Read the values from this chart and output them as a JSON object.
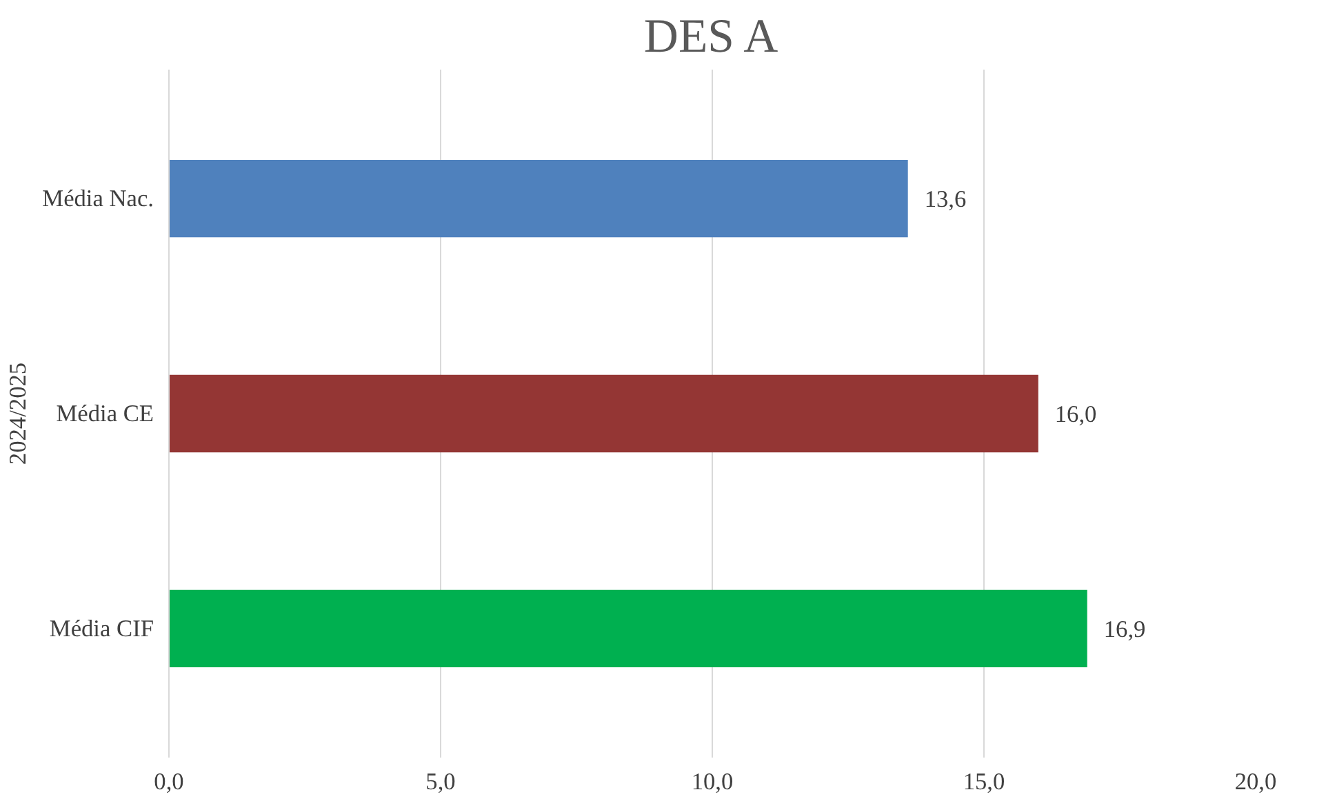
{
  "chart_data": {
    "type": "bar",
    "orientation": "horizontal",
    "title": "DES A",
    "ylabel": "2024/2025",
    "categories": [
      "Média Nac.",
      "Média CE",
      "Média CIF"
    ],
    "values": [
      13.6,
      16.0,
      16.9
    ],
    "colors": [
      "#4f81bd",
      "#943634",
      "#00b050"
    ],
    "value_labels": [
      "13,6",
      "16,0",
      "16,9"
    ],
    "xlim": [
      0,
      20
    ],
    "xticks": [
      {
        "value": 0,
        "label": "0,0"
      },
      {
        "value": 5,
        "label": "5,0"
      },
      {
        "value": 10,
        "label": "10,0"
      },
      {
        "value": 15,
        "label": "15,0"
      },
      {
        "value": 20,
        "label": "20,0"
      }
    ],
    "grid": "x"
  }
}
